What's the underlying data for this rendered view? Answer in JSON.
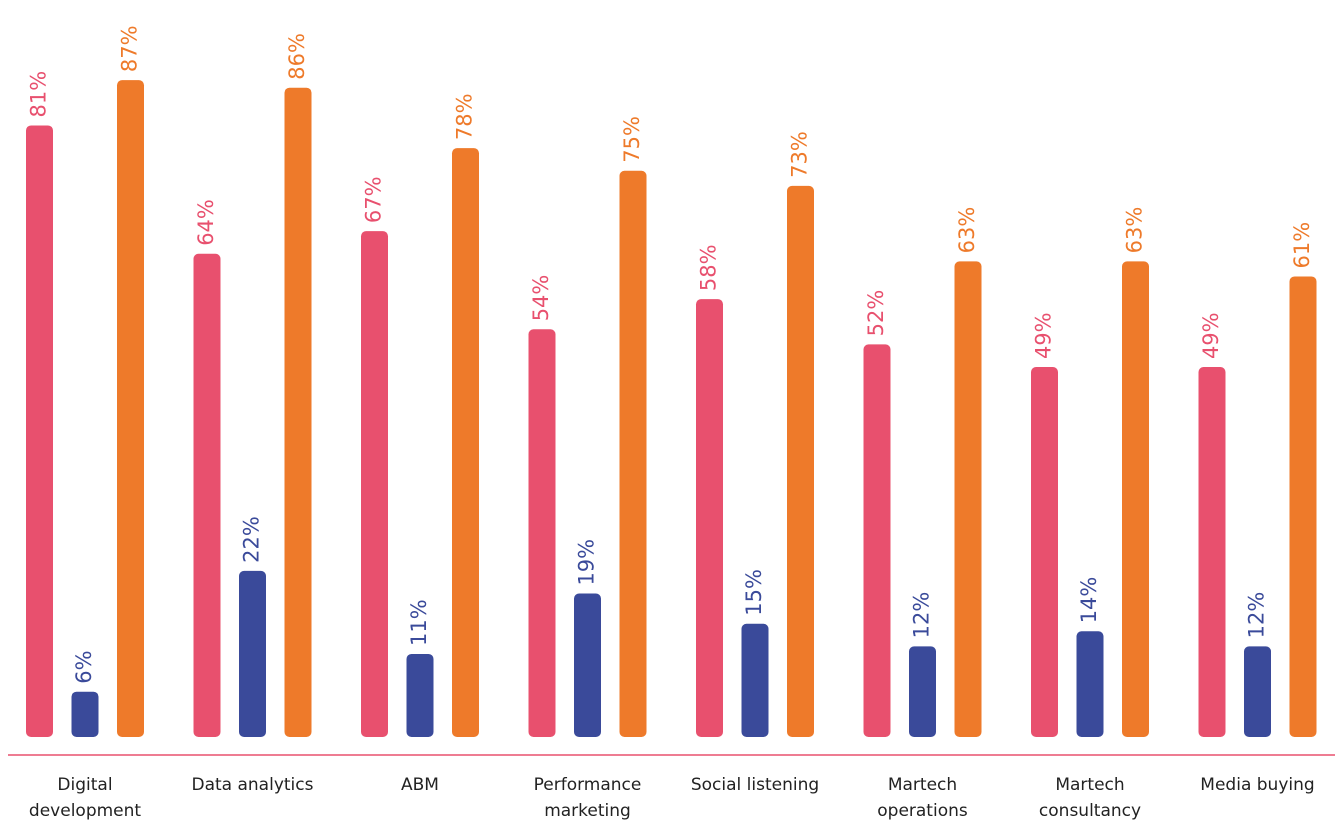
{
  "chart_data": {
    "type": "bar",
    "categories": [
      "Digital\ndevelopment",
      "Data analytics",
      "ABM",
      "Performance\nmarketing",
      "Social listening",
      "Martech\noperations",
      "Martech\nconsultancy",
      "Media buying"
    ],
    "series": [
      {
        "color": "#e8506e",
        "values": [
          81,
          64,
          67,
          54,
          58,
          52,
          49,
          49
        ],
        "value_labels": [
          "81%",
          "64%",
          "67%",
          "54%",
          "58%",
          "52%",
          "49%",
          "49%"
        ]
      },
      {
        "color": "#3a4a9a",
        "values": [
          6,
          22,
          11,
          19,
          15,
          12,
          14,
          12
        ],
        "value_labels": [
          "6%",
          "22%",
          "11%",
          "19%",
          "15%",
          "12%",
          "14%",
          "12%"
        ]
      },
      {
        "color": "#ee7a2a",
        "values": [
          87,
          86,
          78,
          75,
          73,
          63,
          63,
          61
        ],
        "value_labels": [
          "87%",
          "86%",
          "78%",
          "75%",
          "73%",
          "63%",
          "63%",
          "61%"
        ]
      }
    ]
  }
}
